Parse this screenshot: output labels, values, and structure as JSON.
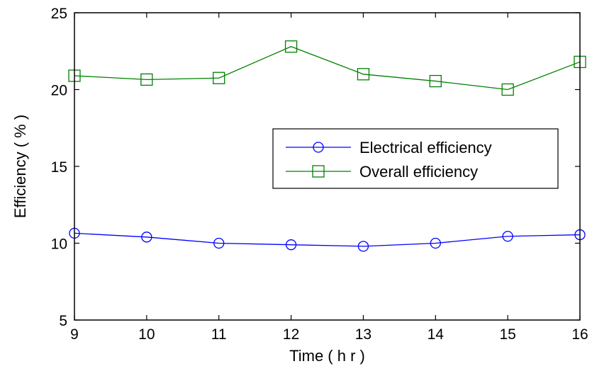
{
  "chart_data": {
    "type": "line",
    "title": "",
    "xlabel": "Time ( h r )",
    "ylabel": "Efficiency ( % )",
    "xlim": [
      9,
      16
    ],
    "ylim": [
      5,
      25
    ],
    "xticks": [
      "9",
      "10",
      "11",
      "12",
      "13",
      "14",
      "15",
      "16"
    ],
    "yticks": [
      "5",
      "10",
      "15",
      "20",
      "25"
    ],
    "grid": false,
    "legend_position": "center-right",
    "series": [
      {
        "name": "Electrical efficiency",
        "color": "#0000ff",
        "marker": "circle",
        "x": [
          9,
          10,
          11,
          12,
          13,
          14,
          15,
          16
        ],
        "y": [
          10.65,
          10.4,
          10.0,
          9.9,
          9.8,
          10.0,
          10.45,
          10.55
        ]
      },
      {
        "name": "Overall efficiency",
        "color": "#008000",
        "marker": "square",
        "x": [
          9,
          10,
          11,
          12,
          13,
          14,
          15,
          16
        ],
        "y": [
          20.9,
          20.65,
          20.75,
          22.8,
          21.0,
          20.55,
          20.0,
          21.8
        ]
      }
    ]
  }
}
